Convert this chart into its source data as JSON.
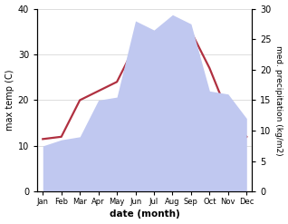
{
  "months": [
    "Jan",
    "Feb",
    "Mar",
    "Apr",
    "May",
    "Jun",
    "Jul",
    "Aug",
    "Sep",
    "Oct",
    "Nov",
    "Dec"
  ],
  "temp": [
    11.5,
    12.0,
    20.0,
    22.0,
    24.0,
    32.0,
    33.0,
    35.0,
    35.0,
    27.0,
    17.0,
    12.0
  ],
  "precip": [
    7.5,
    8.5,
    9.0,
    15.0,
    15.5,
    28.0,
    26.5,
    29.0,
    27.5,
    16.5,
    16.0,
    12.0
  ],
  "temp_color": "#b03040",
  "precip_fill_color": "#c0c8f0",
  "precip_edge_color": "#c0c8f0",
  "temp_ylim": [
    0,
    40
  ],
  "precip_ylim": [
    0,
    30
  ],
  "temp_yticks": [
    0,
    10,
    20,
    30,
    40
  ],
  "precip_yticks": [
    0,
    5,
    10,
    15,
    20,
    25,
    30
  ],
  "xlabel": "date (month)",
  "ylabel_left": "max temp (C)",
  "ylabel_right": "med. precipitation (kg/m2)",
  "bg_color": "#ffffff",
  "grid_color": "#d0d0d0"
}
